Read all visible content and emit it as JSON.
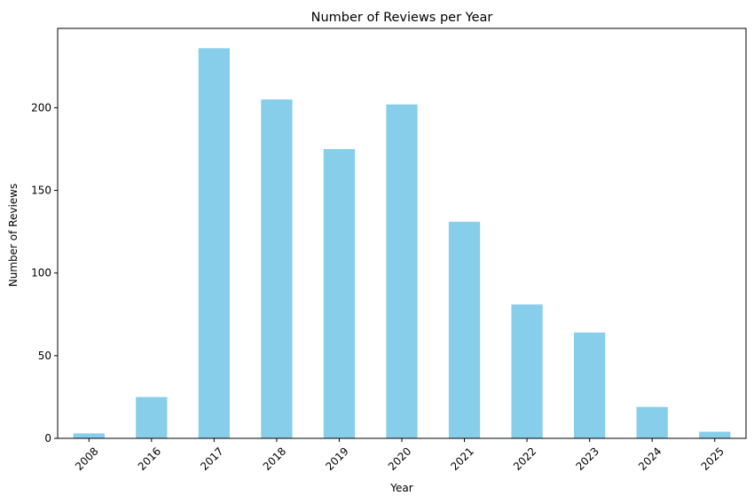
{
  "chart_data": {
    "type": "bar",
    "title": "Number of Reviews per Year",
    "xlabel": "Year",
    "ylabel": "Number of Reviews",
    "categories": [
      "2008",
      "2016",
      "2017",
      "2018",
      "2019",
      "2020",
      "2021",
      "2022",
      "2023",
      "2024",
      "2025"
    ],
    "values": [
      3,
      25,
      236,
      205,
      175,
      202,
      131,
      81,
      64,
      19,
      4
    ],
    "ylim": [
      0,
      248
    ],
    "yticks": [
      0,
      50,
      100,
      150,
      200
    ],
    "bar_color": "#87ceeb",
    "grid": false,
    "legend": "none"
  }
}
